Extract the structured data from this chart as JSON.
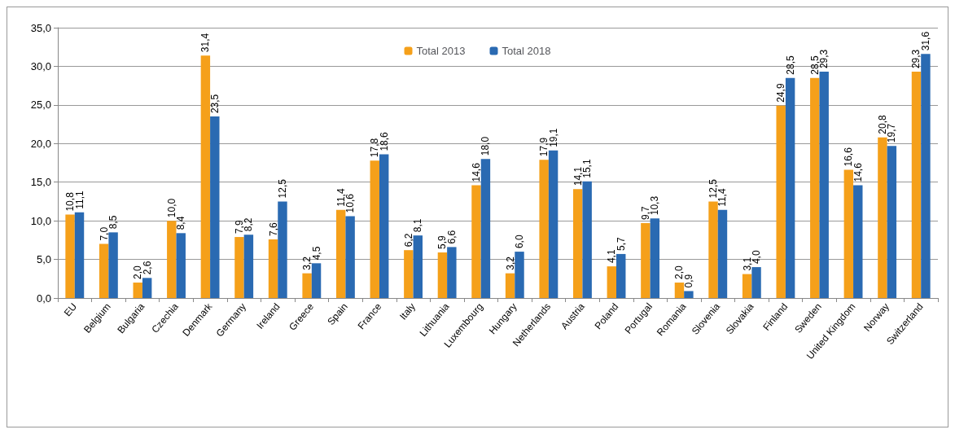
{
  "chart_data": {
    "type": "bar",
    "categories": [
      "EU",
      "Belgium",
      "Bulgaria",
      "Czechia",
      "Denmark",
      "Germany",
      "Ireland",
      "Greece",
      "Spain",
      "France",
      "Italy",
      "Lithuania",
      "Luxembourg",
      "Hungary",
      "Netherlands",
      "Austria",
      "Poland",
      "Portugal",
      "Romania",
      "Slovenia",
      "Slovakia",
      "Finland",
      "Sweden",
      "United Kingdom",
      "Norway",
      "Switzerland"
    ],
    "series": [
      {
        "name": "Total 2013",
        "color": "#f5a01a",
        "values": [
          10.8,
          7.0,
          2.0,
          10.0,
          31.4,
          7.9,
          7.6,
          3.2,
          11.4,
          17.8,
          6.2,
          5.9,
          14.6,
          3.2,
          17.9,
          14.1,
          4.1,
          9.7,
          2.0,
          12.5,
          3.1,
          24.9,
          28.5,
          16.6,
          20.8,
          29.3
        ],
        "value_labels": [
          "10,8",
          "7,0",
          "2,0",
          "10,0",
          "31,4",
          "7,9",
          "7,6",
          "3,2",
          "11,4",
          "17,8",
          "6,2",
          "5,9",
          "14,6",
          "3,2",
          "17,9",
          "14,1",
          "4,1",
          "9,7",
          "2,0",
          "12,5",
          "3,1",
          "24,9",
          "28,5",
          "16,6",
          "20,8",
          "29,3"
        ]
      },
      {
        "name": "Total 2018",
        "color": "#2a6ab2",
        "values": [
          11.1,
          8.5,
          2.6,
          8.4,
          23.5,
          8.2,
          12.5,
          4.5,
          10.6,
          18.6,
          8.1,
          6.6,
          18.0,
          6.0,
          19.1,
          15.1,
          5.7,
          10.3,
          0.9,
          11.4,
          4.0,
          28.5,
          29.3,
          14.6,
          19.7,
          31.6
        ],
        "value_labels": [
          "11,1",
          "8,5",
          "2,6",
          "8,4",
          "23,5",
          "8,2",
          "12,5",
          "4,5",
          "10,6",
          "18,6",
          "8,1",
          "6,6",
          "18,0",
          "6,0",
          "19,1",
          "15,1",
          "5,7",
          "10,3",
          "0,9",
          "11,4",
          "4,0",
          "28,5",
          "29,3",
          "14,6",
          "19,7",
          "31,6"
        ]
      }
    ],
    "ylim": [
      0,
      35
    ],
    "yticks": [
      {
        "value": 0,
        "label": "0,0"
      },
      {
        "value": 5,
        "label": "5,0"
      },
      {
        "value": 10,
        "label": "10,0"
      },
      {
        "value": 15,
        "label": "15,0"
      },
      {
        "value": 20,
        "label": "20,0"
      },
      {
        "value": 25,
        "label": "25,0"
      },
      {
        "value": 30,
        "label": "30,0"
      },
      {
        "value": 35,
        "label": "35,0"
      }
    ],
    "grid": "y",
    "legend": "top"
  }
}
